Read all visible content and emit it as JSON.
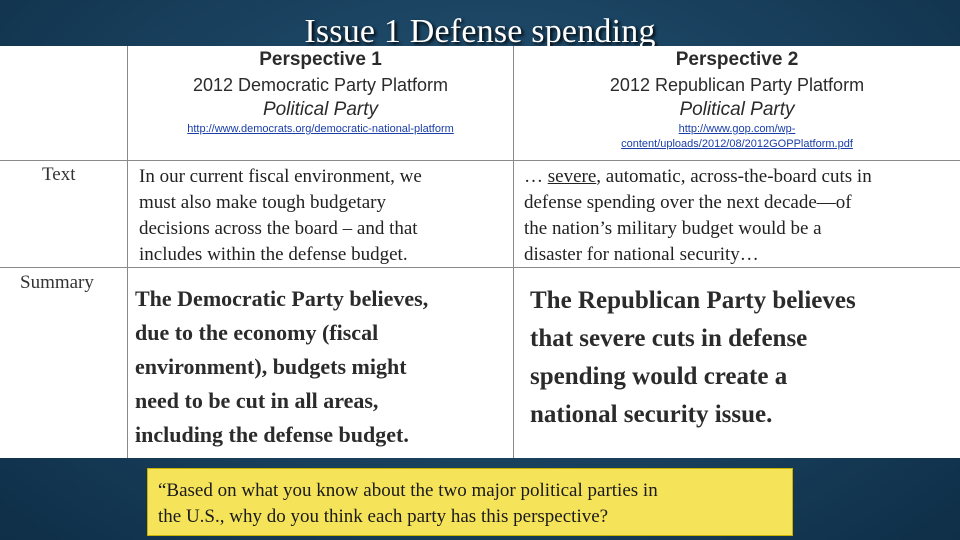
{
  "title": "Issue 1 Defense spending",
  "table": {
    "perspective1": {
      "label": "Perspective 1",
      "org": "2012 Democratic Party Platform",
      "kind": "Political Party",
      "url": "http://www.democrats.org/democratic-national-platform"
    },
    "perspective2": {
      "label": "Perspective 2",
      "org": "2012 Republican Party Platform",
      "kind": "Political Party",
      "url_line1": "http://www.gop.com/wp-",
      "url_line2": "content/uploads/2012/08/2012GOPPlatform.pdf"
    },
    "row_text": {
      "label": "Text",
      "p1": [
        "In our current fiscal environment, we",
        "must also make tough budgetary",
        "decisions across the board – and that",
        "includes within the defense budget."
      ],
      "p2_prefix": "… ",
      "p2_underlined": "severe",
      "p2_line1_rest": ", automatic, across-the-board cuts in",
      "p2": [
        "defense spending over the next decade—of",
        "the nation’s military budget would be a",
        "disaster for national security…"
      ]
    },
    "row_summary": {
      "label": "Summary",
      "p1": [
        "The Democratic Party believes,",
        "due to the economy (fiscal",
        "environment), budgets might",
        "need to be cut in  all areas,",
        "including the defense budget."
      ],
      "p2": [
        "The Republican Party believes",
        "that severe cuts in defense",
        "spending would create a",
        "national security issue."
      ]
    }
  },
  "question": [
    "“Based on what you know about the two major political parties in",
    "the U.S., why do you think each party has this perspective?"
  ]
}
